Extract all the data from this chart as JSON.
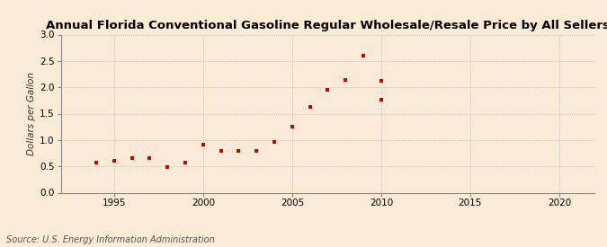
{
  "title": "Annual Florida Conventional Gasoline Regular Wholesale/Resale Price by All Sellers",
  "ylabel": "Dollars per Gallon",
  "source": "Source: U.S. Energy Information Administration",
  "background_color": "#faebd7",
  "marker_color": "#cc0000",
  "years": [
    1994,
    1995,
    1996,
    1997,
    1998,
    1999,
    2000,
    2001,
    2002,
    2003,
    2004,
    2005,
    2006,
    2007,
    2008,
    2009,
    2010
  ],
  "values": [
    0.57,
    0.6,
    0.65,
    0.65,
    0.48,
    0.57,
    0.91,
    0.8,
    0.79,
    0.79,
    0.96,
    1.25,
    1.62,
    1.96,
    2.14,
    2.6,
    1.77
  ],
  "extra_year": 2010,
  "extra_value": 2.13,
  "xlim": [
    1992,
    2022
  ],
  "ylim": [
    0.0,
    3.0
  ],
  "yticks": [
    0.0,
    0.5,
    1.0,
    1.5,
    2.0,
    2.5,
    3.0
  ],
  "xticks": [
    1995,
    2000,
    2005,
    2010,
    2015,
    2020
  ],
  "title_fontsize": 9.5,
  "label_fontsize": 7.5,
  "tick_fontsize": 7.5,
  "source_fontsize": 7.0,
  "grid_color": "#b0b0b0",
  "spine_color": "#888888"
}
